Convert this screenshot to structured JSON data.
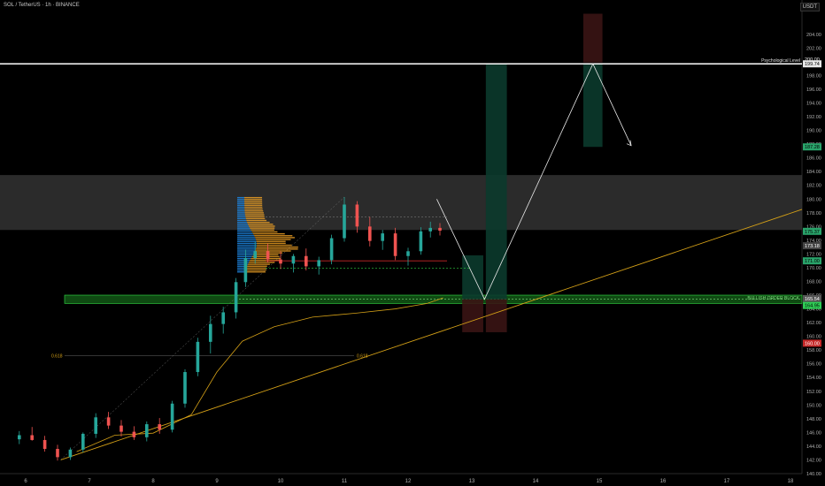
{
  "header": {
    "symbol_title": "SOL / TetherUS · 1h · BINANCE",
    "currency": "USDT"
  },
  "chart_data": {
    "type": "candlestick",
    "symbol": "SOL / TetherUS",
    "timeframe": "1h",
    "exchange": "BINANCE",
    "y_axis": {
      "range": [
        140,
        209
      ],
      "ticks": [
        140,
        142,
        144,
        146,
        148,
        150,
        152,
        154,
        156,
        158,
        160,
        162,
        164,
        166,
        168,
        170,
        172,
        174,
        176,
        178,
        180,
        182,
        184,
        186,
        188,
        190,
        192,
        194,
        196,
        198,
        200,
        202,
        204
      ]
    },
    "x_axis": {
      "ticks": [
        {
          "label": "6",
          "day": 6
        },
        {
          "label": "7",
          "day": 7
        },
        {
          "label": "8",
          "day": 8
        },
        {
          "label": "9",
          "day": 9
        },
        {
          "label": "10",
          "day": 10
        },
        {
          "label": "11",
          "day": 11
        },
        {
          "label": "12",
          "day": 12
        },
        {
          "label": "13",
          "day": 13
        },
        {
          "label": "14",
          "day": 14
        },
        {
          "label": "15",
          "day": 15
        },
        {
          "label": "16",
          "day": 16
        },
        {
          "label": "17",
          "day": 17
        },
        {
          "label": "18",
          "day": 18
        }
      ]
    },
    "candles": [
      {
        "t": 5.9,
        "o": 145.0,
        "h": 146.2,
        "l": 144.3,
        "c": 145.6
      },
      {
        "t": 6.1,
        "o": 145.6,
        "h": 146.8,
        "l": 144.8,
        "c": 144.9
      },
      {
        "t": 6.3,
        "o": 144.9,
        "h": 145.5,
        "l": 143.2,
        "c": 143.6
      },
      {
        "t": 6.5,
        "o": 143.6,
        "h": 144.2,
        "l": 141.9,
        "c": 142.4
      },
      {
        "t": 6.7,
        "o": 142.4,
        "h": 143.8,
        "l": 142.0,
        "c": 143.5
      },
      {
        "t": 6.9,
        "o": 143.5,
        "h": 146.0,
        "l": 143.1,
        "c": 145.8
      },
      {
        "t": 7.1,
        "o": 145.8,
        "h": 148.8,
        "l": 145.2,
        "c": 148.2
      },
      {
        "t": 7.3,
        "o": 148.2,
        "h": 149.0,
        "l": 146.5,
        "c": 147.0
      },
      {
        "t": 7.5,
        "o": 147.0,
        "h": 147.8,
        "l": 145.4,
        "c": 146.1
      },
      {
        "t": 7.7,
        "o": 146.1,
        "h": 146.9,
        "l": 144.9,
        "c": 145.3
      },
      {
        "t": 7.9,
        "o": 145.3,
        "h": 147.6,
        "l": 144.7,
        "c": 147.2
      },
      {
        "t": 8.1,
        "o": 147.2,
        "h": 148.1,
        "l": 145.8,
        "c": 146.4
      },
      {
        "t": 8.3,
        "o": 146.4,
        "h": 150.6,
        "l": 146.0,
        "c": 150.2
      },
      {
        "t": 8.5,
        "o": 150.2,
        "h": 155.2,
        "l": 149.6,
        "c": 154.8
      },
      {
        "t": 8.7,
        "o": 154.8,
        "h": 159.8,
        "l": 154.2,
        "c": 159.2
      },
      {
        "t": 8.9,
        "o": 159.2,
        "h": 163.0,
        "l": 157.5,
        "c": 161.8
      },
      {
        "t": 9.1,
        "o": 161.8,
        "h": 164.3,
        "l": 160.4,
        "c": 163.5
      },
      {
        "t": 9.3,
        "o": 163.5,
        "h": 168.5,
        "l": 162.6,
        "c": 167.9
      },
      {
        "t": 9.45,
        "o": 167.9,
        "h": 172.6,
        "l": 167.2,
        "c": 171.4
      },
      {
        "t": 9.6,
        "o": 171.4,
        "h": 173.8,
        "l": 170.6,
        "c": 172.4
      },
      {
        "t": 9.8,
        "o": 172.4,
        "h": 173.5,
        "l": 170.7,
        "c": 171.2
      },
      {
        "t": 10.0,
        "o": 171.2,
        "h": 172.4,
        "l": 169.8,
        "c": 170.6
      },
      {
        "t": 10.2,
        "o": 170.6,
        "h": 172.0,
        "l": 169.3,
        "c": 171.7
      },
      {
        "t": 10.4,
        "o": 171.7,
        "h": 172.8,
        "l": 169.6,
        "c": 170.2
      },
      {
        "t": 10.6,
        "o": 170.2,
        "h": 171.6,
        "l": 169.0,
        "c": 171.1
      },
      {
        "t": 10.8,
        "o": 171.1,
        "h": 174.8,
        "l": 170.5,
        "c": 174.3
      },
      {
        "t": 11.0,
        "o": 174.3,
        "h": 180.3,
        "l": 173.8,
        "c": 179.2
      },
      {
        "t": 11.2,
        "o": 179.2,
        "h": 179.7,
        "l": 175.1,
        "c": 176.0
      },
      {
        "t": 11.4,
        "o": 176.0,
        "h": 177.4,
        "l": 173.1,
        "c": 173.9
      },
      {
        "t": 11.6,
        "o": 173.9,
        "h": 175.5,
        "l": 172.6,
        "c": 175.0
      },
      {
        "t": 11.8,
        "o": 175.0,
        "h": 175.8,
        "l": 171.1,
        "c": 171.7
      },
      {
        "t": 12.0,
        "o": 171.7,
        "h": 172.9,
        "l": 170.3,
        "c": 172.4
      },
      {
        "t": 12.2,
        "o": 172.4,
        "h": 175.9,
        "l": 171.9,
        "c": 175.3
      },
      {
        "t": 12.35,
        "o": 175.3,
        "h": 176.7,
        "l": 174.4,
        "c": 175.8
      },
      {
        "t": 12.5,
        "o": 175.8,
        "h": 176.5,
        "l": 174.7,
        "c": 175.4
      }
    ],
    "zones": [
      {
        "label": "",
        "from": 175.5,
        "to": 183.5,
        "kind": "resistance"
      },
      {
        "label": "BULLISH ORDER BLOCK",
        "from": 164.8,
        "to": 166.0,
        "kind": "demand"
      }
    ],
    "levels": [
      {
        "label": "Psychological Level",
        "price": 199.7
      },
      {
        "label": "0.618",
        "price": 157.2
      }
    ],
    "trade_boxes": [
      {
        "from_day": 12.85,
        "to_day": 13.18,
        "top": 171.8,
        "bottom": 165.4,
        "color": "#0b3a2c"
      },
      {
        "from_day": 12.85,
        "to_day": 13.18,
        "top": 165.4,
        "bottom": 160.6,
        "color": "#3a1414"
      },
      {
        "from_day": 13.22,
        "to_day": 13.55,
        "top": 199.7,
        "bottom": 165.4,
        "color": "#0b3a2c"
      },
      {
        "from_day": 13.22,
        "to_day": 13.55,
        "top": 165.4,
        "bottom": 160.6,
        "color": "#3a1414"
      },
      {
        "from_day": 14.75,
        "to_day": 15.05,
        "top": 207.0,
        "bottom": 199.9,
        "color": "#3a1414"
      },
      {
        "from_day": 14.75,
        "to_day": 15.05,
        "top": 199.7,
        "bottom": 187.6,
        "color": "#0b3a2c"
      }
    ],
    "projection_path": [
      {
        "day": 12.45,
        "price": 180.0
      },
      {
        "day": 13.2,
        "price": 165.4
      },
      {
        "day": 14.9,
        "price": 199.7
      },
      {
        "day": 15.5,
        "price": 187.8
      }
    ],
    "price_labels": [
      {
        "text": "200.00",
        "price": 200.4,
        "color": "#e8e8e8",
        "bg": "#000"
      },
      {
        "text": "199.74",
        "price": 199.7,
        "color": "#000",
        "bg": "#e8e8e8"
      },
      {
        "text": "187.28",
        "price": 187.6,
        "color": "#000",
        "bg": "#29a36a"
      },
      {
        "text": "175.37",
        "price": 175.3,
        "color": "#000",
        "bg": "#29a36a"
      },
      {
        "text": "173.18",
        "price": 173.2,
        "color": "#fff",
        "bg": "#444"
      },
      {
        "text": "171.00",
        "price": 171.0,
        "color": "#000",
        "bg": "#29a36a"
      },
      {
        "text": "165.54",
        "price": 165.5,
        "color": "#fff",
        "bg": "#555"
      },
      {
        "text": "164.95",
        "price": 164.5,
        "color": "#000",
        "bg": "#2ecc55"
      },
      {
        "text": "160.00",
        "price": 159.0,
        "color": "#fff",
        "bg": "#c62828"
      }
    ],
    "colors": {
      "up": "#26a69a",
      "down": "#ef5350",
      "trend": "#d4a017",
      "profile_up": "#1e88e5",
      "profile_down": "#f9a825"
    }
  }
}
